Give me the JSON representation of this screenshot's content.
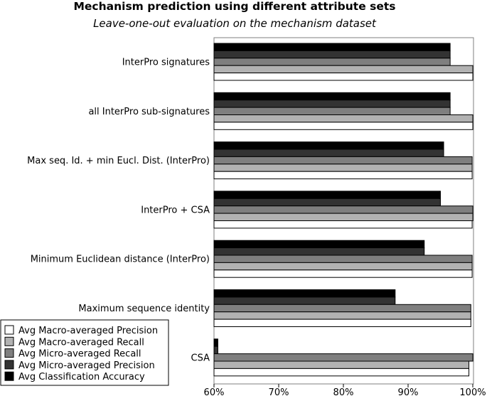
{
  "chart_data": {
    "type": "bar",
    "orientation": "horizontal",
    "title": "Mechanism prediction using different attribute sets",
    "subtitle": "Leave-one-out evaluation on the mechanism dataset",
    "xlabel": "",
    "ylabel": "",
    "xlim": [
      60,
      100
    ],
    "x_ticks": [
      "60%",
      "70%",
      "80%",
      "90%",
      "100%"
    ],
    "x_tick_values": [
      60,
      70,
      80,
      90,
      100
    ],
    "grid": false,
    "legend_position": "bottom-left",
    "categories": [
      "InterPro signatures",
      "all InterPro sub-signatures",
      "Max seq. Id. + min Eucl. Dist. (InterPro)",
      "InterPro + CSA",
      "Minimum Euclidean distance (InterPro)",
      "Maximum sequence identity",
      "CSA"
    ],
    "series": [
      {
        "name": "Avg Macro-averaged Precision",
        "color": "#ffffff",
        "values": [
          100,
          100,
          99.9,
          99.9,
          99.9,
          99.7,
          99.4
        ]
      },
      {
        "name": "Avg Macro-averaged Recall",
        "color": "#b2b2b2",
        "values": [
          100,
          100,
          99.9,
          100,
          99.9,
          99.7,
          99.4
        ]
      },
      {
        "name": "Avg Micro-averaged Recall",
        "color": "#7f7f7f",
        "values": [
          96.5,
          96.5,
          99.9,
          100,
          99.9,
          99.7,
          100
        ]
      },
      {
        "name": "Avg Micro-averaged Precision",
        "color": "#333333",
        "values": [
          96.5,
          96.5,
          95.5,
          95,
          92.5,
          88,
          60.6
        ]
      },
      {
        "name": "Avg Classification Accuracy",
        "color": "#000000",
        "values": [
          96.5,
          96.5,
          95.5,
          95,
          92.5,
          88,
          60.6
        ]
      }
    ]
  }
}
